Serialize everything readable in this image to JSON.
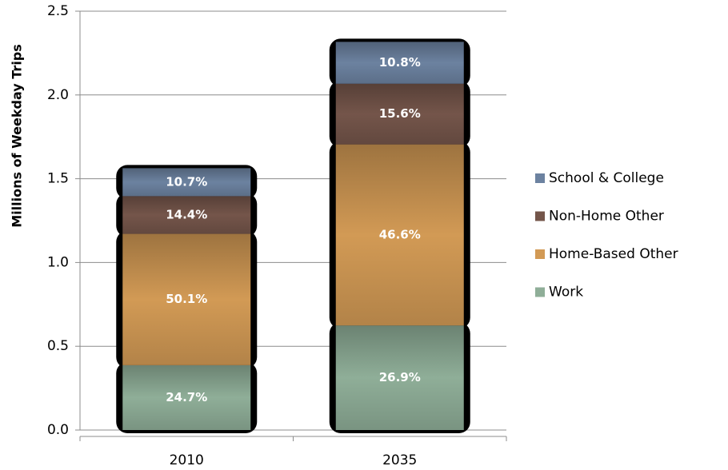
{
  "chart_data": {
    "type": "stacked_bar",
    "y_label": "Millions of Weekday Trips",
    "categories": [
      "2010",
      "2035"
    ],
    "series": [
      {
        "name": "Work",
        "color": "#8fae98",
        "values": [
          0.387,
          0.624
        ],
        "share_values": [
          24.7,
          26.9
        ],
        "share_labels": [
          "24.7%",
          "26.9%"
        ]
      },
      {
        "name": "Home-Based Other",
        "color": "#d29a55",
        "values": [
          0.784,
          1.081
        ],
        "share_values": [
          50.1,
          46.6
        ],
        "share_labels": [
          "50.1%",
          "46.6%"
        ]
      },
      {
        "name": "Non-Home Other",
        "color": "#74554a",
        "values": [
          0.225,
          0.362
        ],
        "share_values": [
          14.4,
          15.6
        ],
        "share_labels": [
          "14.4%",
          "15.6%"
        ]
      },
      {
        "name": "School & College",
        "color": "#6c82a0",
        "values": [
          0.167,
          0.25
        ],
        "share_values": [
          10.7,
          10.8
        ],
        "share_labels": [
          "10.7%",
          "10.8%"
        ]
      }
    ],
    "ylim": [
      0,
      2.5
    ],
    "yticks": [
      {
        "value": 0,
        "label": "0.0"
      },
      0.5,
      {
        "value": 1,
        "label": "1.0"
      },
      1.5,
      {
        "value": 2,
        "label": "2.0"
      },
      2.5
    ],
    "grid": true,
    "legend": "right"
  }
}
